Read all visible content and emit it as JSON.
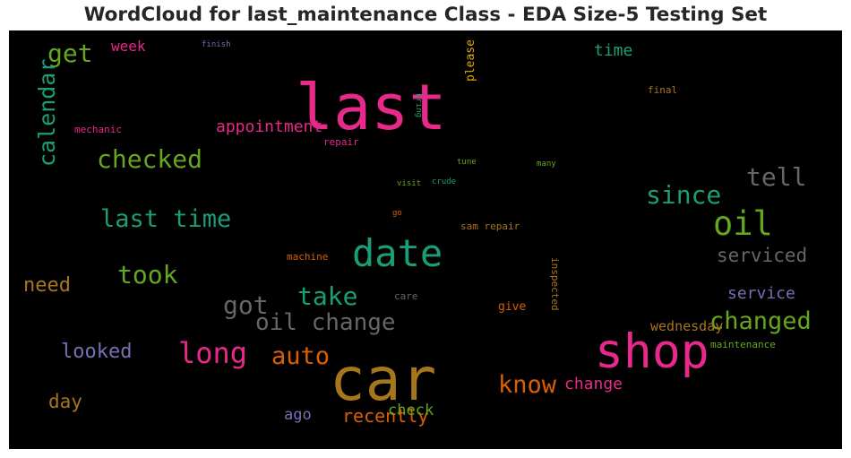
{
  "title": "WordCloud for last_maintenance Class - EDA Size-5 Testing Set",
  "words": [
    {
      "text": "last",
      "color": "#e7298a"
    },
    {
      "text": "car",
      "color": "#a6761d"
    },
    {
      "text": "shop",
      "color": "#e7298a"
    },
    {
      "text": "date",
      "color": "#1b9e77"
    },
    {
      "text": "oil",
      "color": "#66a61e"
    },
    {
      "text": "oil change",
      "color": "#666666"
    },
    {
      "text": "checked",
      "color": "#66a61e"
    },
    {
      "text": "last time",
      "color": "#1b9e77"
    },
    {
      "text": "take",
      "color": "#1b9e77"
    },
    {
      "text": "long",
      "color": "#e7298a"
    },
    {
      "text": "changed",
      "color": "#66a61e"
    },
    {
      "text": "since",
      "color": "#1b9e77"
    },
    {
      "text": "tell",
      "color": "#666666"
    },
    {
      "text": "took",
      "color": "#66a61e"
    },
    {
      "text": "got",
      "color": "#666666"
    },
    {
      "text": "auto",
      "color": "#d95f02"
    },
    {
      "text": "know",
      "color": "#d95f02"
    },
    {
      "text": "get",
      "color": "#66a61e"
    },
    {
      "text": "looked",
      "color": "#7570b3"
    },
    {
      "text": "need",
      "color": "#a6761d"
    },
    {
      "text": "day",
      "color": "#a6761d"
    },
    {
      "text": "serviced",
      "color": "#666666"
    },
    {
      "text": "change",
      "color": "#e7298a"
    },
    {
      "text": "appointment",
      "color": "#e7298a"
    },
    {
      "text": "recently",
      "color": "#d95f02"
    },
    {
      "text": "ago",
      "color": "#7570b3"
    },
    {
      "text": "check",
      "color": "#66a61e"
    },
    {
      "text": "service",
      "color": "#7570b3"
    },
    {
      "text": "time",
      "color": "#1b9e77"
    },
    {
      "text": "week",
      "color": "#e7298a"
    },
    {
      "text": "wednesday",
      "color": "#a6761d"
    },
    {
      "text": "give",
      "color": "#d95f02"
    },
    {
      "text": "final",
      "color": "#a6761d"
    },
    {
      "text": "repair",
      "color": "#e7298a"
    },
    {
      "text": "sam repair",
      "color": "#a6761d"
    },
    {
      "text": "maintenance",
      "color": "#66a61e"
    },
    {
      "text": "mechanic",
      "color": "#e7298a"
    },
    {
      "text": "machine",
      "color": "#d95f02"
    },
    {
      "text": "care",
      "color": "#666666"
    },
    {
      "text": "tune",
      "color": "#66a61e"
    },
    {
      "text": "many",
      "color": "#66a61e"
    },
    {
      "text": "go",
      "color": "#d95f02"
    },
    {
      "text": "crude",
      "color": "#1b9e77"
    },
    {
      "text": "visit",
      "color": "#66a61e"
    },
    {
      "text": "finish",
      "color": "#7570b3"
    },
    {
      "text": "please",
      "color": "#e6ab02"
    },
    {
      "text": "calendar",
      "color": "#1b9e77"
    },
    {
      "text": "inspected",
      "color": "#a6761d"
    },
    {
      "text": "bring",
      "color": "#1b9e77"
    }
  ]
}
